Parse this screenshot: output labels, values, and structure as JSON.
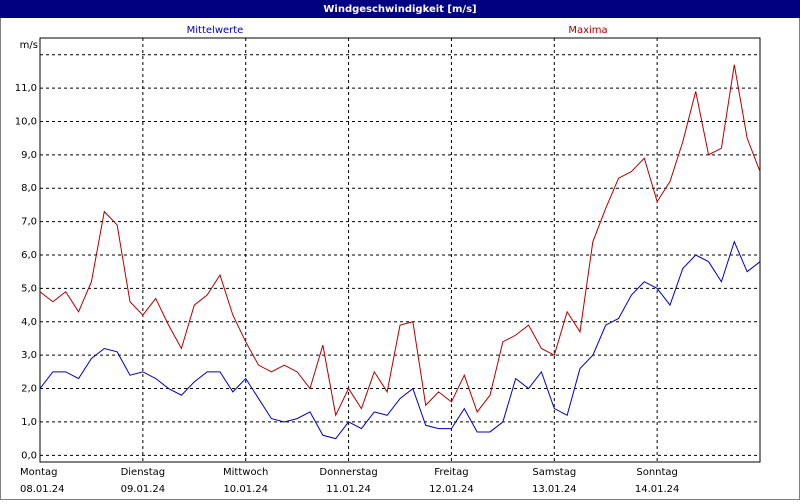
{
  "chart_data": {
    "type": "line",
    "title": "Windgeschwindigkeit [m/s]",
    "y_unit": "m/s",
    "x": [
      0,
      3,
      6,
      9,
      12,
      15,
      18,
      21,
      24,
      27,
      30,
      33,
      36,
      39,
      42,
      45,
      48,
      51,
      54,
      57,
      60,
      63,
      66,
      69,
      72,
      75,
      78,
      81,
      84,
      87,
      90,
      93,
      96,
      99,
      102,
      105,
      108,
      111,
      114,
      117,
      120,
      123,
      126,
      129,
      132,
      135,
      138,
      141,
      144,
      147,
      150,
      153,
      156,
      159,
      162,
      165,
      168
    ],
    "series": [
      {
        "name": "Mittelwerte",
        "color": "#0000c0",
        "values": [
          2.0,
          2.5,
          2.5,
          2.3,
          2.9,
          3.2,
          3.1,
          2.4,
          2.5,
          2.3,
          2.0,
          1.8,
          2.2,
          2.5,
          2.5,
          1.9,
          2.3,
          1.7,
          1.1,
          1.0,
          1.1,
          1.3,
          0.6,
          0.5,
          1.0,
          0.8,
          1.3,
          1.2,
          1.7,
          2.0,
          0.9,
          0.8,
          0.8,
          1.4,
          0.7,
          0.7,
          1.0,
          2.3,
          2.0,
          2.5,
          1.4,
          1.2,
          2.6,
          3.0,
          3.9,
          4.1,
          4.8,
          5.2,
          5.0,
          4.5,
          5.6,
          6.0,
          5.8,
          5.2,
          6.4,
          5.5,
          5.8
        ]
      },
      {
        "name": "Maxima",
        "color": "#b00000",
        "values": [
          4.9,
          4.6,
          4.9,
          4.3,
          5.2,
          7.3,
          6.9,
          4.6,
          4.2,
          4.7,
          3.9,
          3.2,
          4.5,
          4.8,
          5.4,
          4.2,
          3.4,
          2.7,
          2.5,
          2.7,
          2.5,
          2.0,
          3.3,
          1.2,
          2.0,
          1.4,
          2.5,
          1.9,
          3.9,
          4.0,
          1.5,
          1.9,
          1.6,
          2.4,
          1.3,
          1.8,
          3.4,
          3.6,
          3.9,
          3.2,
          3.0,
          4.3,
          3.7,
          6.4,
          7.4,
          8.3,
          8.5,
          8.9,
          7.6,
          8.2,
          9.4,
          10.9,
          9.0,
          9.2,
          11.7,
          9.5,
          8.5
        ]
      }
    ],
    "xlim": [
      0,
      168
    ],
    "xticks": [
      {
        "value": 0,
        "label": "Montag",
        "date": "08.01.24"
      },
      {
        "value": 24,
        "label": "Dienstag",
        "date": "09.01.24"
      },
      {
        "value": 48,
        "label": "Mittwoch",
        "date": "10.01.24"
      },
      {
        "value": 72,
        "label": "Donnerstag",
        "date": "11.01.24"
      },
      {
        "value": 96,
        "label": "Freitag",
        "date": "12.01.24"
      },
      {
        "value": 120,
        "label": "Samstag",
        "date": "13.01.24"
      },
      {
        "value": 144,
        "label": "Sonntag",
        "date": "14.01.24"
      }
    ],
    "ylim": [
      -0.2,
      12.5
    ],
    "yticks": [
      {
        "value": 0,
        "label": "0,0"
      },
      {
        "value": 1,
        "label": "1,0"
      },
      {
        "value": 2,
        "label": "2,0"
      },
      {
        "value": 3,
        "label": "3,0"
      },
      {
        "value": 4,
        "label": "4,0"
      },
      {
        "value": 5,
        "label": "5,0"
      },
      {
        "value": 6,
        "label": "6,0"
      },
      {
        "value": 7,
        "label": "7,0"
      },
      {
        "value": 8,
        "label": "8,0"
      },
      {
        "value": 9,
        "label": "9,0"
      },
      {
        "value": 10,
        "label": "10,0"
      },
      {
        "value": 11,
        "label": "11,0"
      },
      {
        "value": 12,
        "label": null
      }
    ],
    "grid": true
  }
}
